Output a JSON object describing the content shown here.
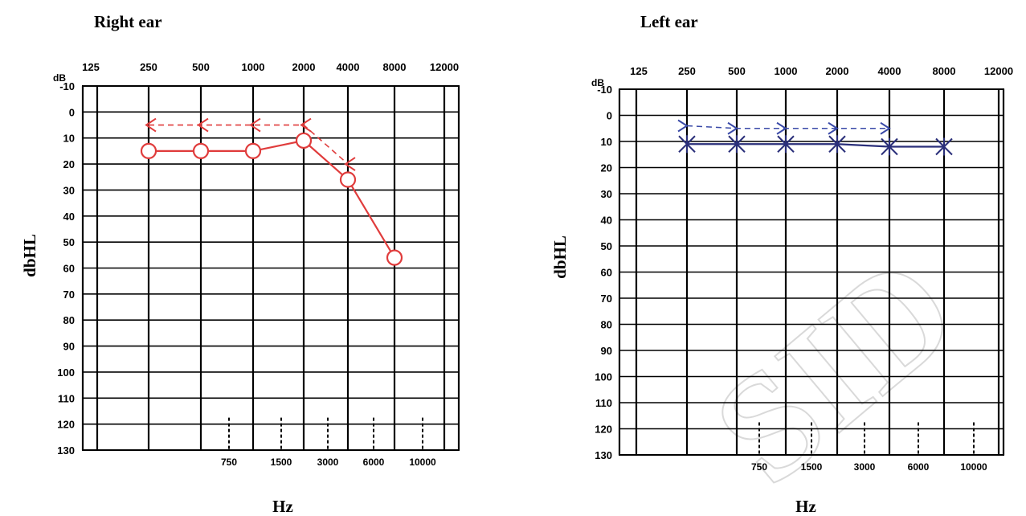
{
  "chart_data": [
    {
      "type": "line",
      "title": "Right ear",
      "xlabel": "Hz",
      "ylabel": "dbHL",
      "y_unit_label": "dB",
      "x_top_ticks": [
        "125",
        "250",
        "500",
        "1000",
        "2000",
        "4000",
        "8000",
        "12000"
      ],
      "x_bottom_ticks": [
        "750",
        "1500",
        "3000",
        "6000",
        "10000"
      ],
      "y_ticks": [
        "-10",
        "0",
        "10",
        "20",
        "30",
        "40",
        "50",
        "60",
        "70",
        "80",
        "90",
        "100",
        "110",
        "120",
        "130"
      ],
      "ylim": [
        -10,
        130
      ],
      "y_inverted": true,
      "x_scale": "log-frequency",
      "grid": true,
      "series": [
        {
          "marker": "circle",
          "line": "solid",
          "color": "#e03c3c",
          "x": [
            "250",
            "500",
            "1000",
            "2000",
            "4000",
            "8000"
          ],
          "values": [
            15,
            15,
            15,
            11,
            26,
            56
          ]
        },
        {
          "marker": "arrow-left",
          "line": "dashed",
          "color": "#e03c3c",
          "x": [
            "250",
            "500",
            "1000",
            "2000",
            "4000"
          ],
          "values": [
            5,
            5,
            5,
            5,
            20
          ]
        }
      ]
    },
    {
      "type": "line",
      "title": "Left ear",
      "xlabel": "Hz",
      "ylabel": "dbHL",
      "y_unit_label": "dB",
      "x_top_ticks": [
        "125",
        "250",
        "500",
        "1000",
        "2000",
        "4000",
        "8000",
        "12000"
      ],
      "x_bottom_ticks": [
        "750",
        "1500",
        "3000",
        "6000",
        "10000"
      ],
      "y_ticks": [
        "-10",
        "0",
        "10",
        "20",
        "30",
        "40",
        "50",
        "60",
        "70",
        "80",
        "90",
        "100",
        "110",
        "120",
        "130"
      ],
      "ylim": [
        -10,
        130
      ],
      "y_inverted": true,
      "x_scale": "log-frequency",
      "grid": true,
      "series": [
        {
          "marker": "cross",
          "line": "solid",
          "color": "#2a2f7a",
          "x": [
            "250",
            "500",
            "1000",
            "2000",
            "4000",
            "8000"
          ],
          "values": [
            11,
            11,
            11,
            11,
            12,
            12
          ]
        },
        {
          "marker": "arrow-right",
          "line": "dashed",
          "color": "#3a4aa8",
          "x": [
            "250",
            "500",
            "1000",
            "2000",
            "4000"
          ],
          "values": [
            4,
            5,
            5,
            5,
            5
          ]
        }
      ]
    }
  ],
  "watermark": "SID"
}
